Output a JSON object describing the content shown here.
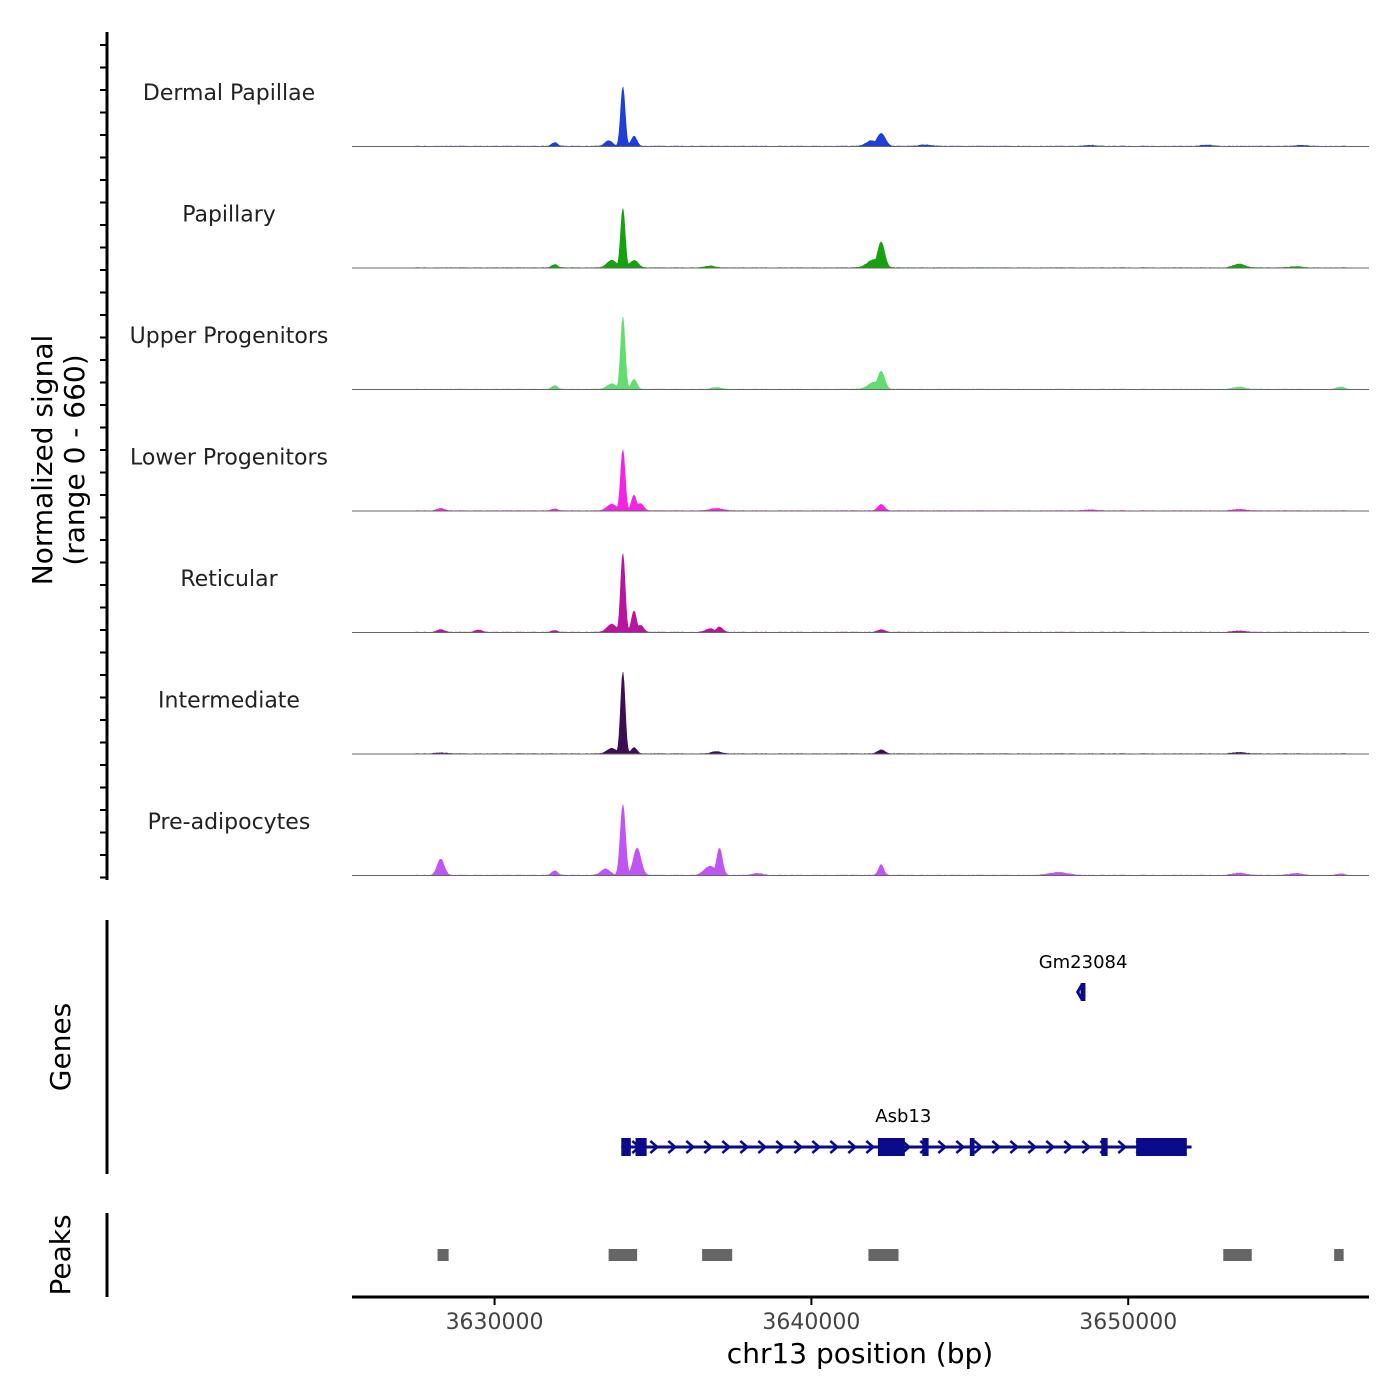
{
  "chart_data": {
    "type": "area",
    "title": "",
    "signal_axis_label": "Normalized signal",
    "signal_axis_range_label": "(range 0 - 660)",
    "signal_range": [
      0,
      660
    ],
    "genes_axis_label": "Genes",
    "peaks_axis_label": "Peaks",
    "xlabel": "chr13 position (bp)",
    "xlim": [
      3625500,
      3657600
    ],
    "x_ticks": [
      {
        "value": 3630000,
        "label": "3630000"
      },
      {
        "value": 3640000,
        "label": "3640000"
      },
      {
        "value": 3650000,
        "label": "3650000"
      }
    ],
    "tracks": [
      {
        "name": "Dermal Papillae",
        "color": "#1f3fd6",
        "peaks": [
          [
            3631900,
            40,
            90
          ],
          [
            3633600,
            60,
            120
          ],
          [
            3634050,
            640,
            70
          ],
          [
            3634400,
            110,
            90
          ],
          [
            3641900,
            60,
            170
          ],
          [
            3642200,
            140,
            130
          ],
          [
            3643600,
            15,
            200
          ],
          [
            3648800,
            10,
            200
          ],
          [
            3652500,
            12,
            200
          ],
          [
            3655500,
            10,
            200
          ]
        ]
      },
      {
        "name": "Papillary",
        "color": "#17a00f",
        "peaks": [
          [
            3631900,
            35,
            90
          ],
          [
            3633700,
            80,
            150
          ],
          [
            3634050,
            640,
            70
          ],
          [
            3634400,
            80,
            130
          ],
          [
            3636800,
            20,
            150
          ],
          [
            3642000,
            90,
            220
          ],
          [
            3642200,
            280,
            110
          ],
          [
            3653500,
            40,
            180
          ],
          [
            3655300,
            12,
            200
          ]
        ]
      },
      {
        "name": "Upper Progenitors",
        "color": "#63dd72",
        "peaks": [
          [
            3631900,
            40,
            90
          ],
          [
            3633700,
            60,
            150
          ],
          [
            3634050,
            800,
            70
          ],
          [
            3634400,
            110,
            90
          ],
          [
            3637000,
            20,
            150
          ],
          [
            3642000,
            80,
            200
          ],
          [
            3642200,
            200,
            110
          ],
          [
            3653500,
            25,
            180
          ],
          [
            3656700,
            25,
            120
          ]
        ]
      },
      {
        "name": "Lower Progenitors",
        "color": "#f422e3",
        "peaks": [
          [
            3628300,
            25,
            120
          ],
          [
            3631900,
            20,
            90
          ],
          [
            3633700,
            70,
            150
          ],
          [
            3634050,
            660,
            70
          ],
          [
            3634400,
            170,
            80
          ],
          [
            3634600,
            80,
            100
          ],
          [
            3637000,
            25,
            200
          ],
          [
            3642200,
            70,
            100
          ],
          [
            3648800,
            10,
            200
          ],
          [
            3653500,
            15,
            200
          ]
        ]
      },
      {
        "name": "Reticular",
        "color": "#b8149f",
        "peaks": [
          [
            3628300,
            30,
            120
          ],
          [
            3629500,
            25,
            120
          ],
          [
            3631900,
            20,
            90
          ],
          [
            3633700,
            90,
            150
          ],
          [
            3634050,
            880,
            70
          ],
          [
            3634400,
            240,
            80
          ],
          [
            3634600,
            80,
            100
          ],
          [
            3636800,
            40,
            140
          ],
          [
            3637100,
            60,
            100
          ],
          [
            3642200,
            30,
            110
          ],
          [
            3653500,
            15,
            200
          ]
        ]
      },
      {
        "name": "Intermediate",
        "color": "#3c0f55",
        "peaks": [
          [
            3628300,
            10,
            200
          ],
          [
            3633700,
            60,
            150
          ],
          [
            3634050,
            920,
            70
          ],
          [
            3634400,
            70,
            90
          ],
          [
            3637000,
            25,
            150
          ],
          [
            3642200,
            45,
            110
          ],
          [
            3653500,
            15,
            200
          ]
        ]
      },
      {
        "name": "Pre-adipocytes",
        "color": "#bf55f2",
        "peaks": [
          [
            3628300,
            180,
            110
          ],
          [
            3631900,
            50,
            90
          ],
          [
            3633500,
            70,
            140
          ],
          [
            3634050,
            780,
            80
          ],
          [
            3634500,
            300,
            120
          ],
          [
            3636800,
            100,
            180
          ],
          [
            3637100,
            300,
            90
          ],
          [
            3638300,
            20,
            160
          ],
          [
            3642200,
            120,
            80
          ],
          [
            3647800,
            30,
            300
          ],
          [
            3653500,
            25,
            200
          ],
          [
            3655300,
            20,
            200
          ],
          [
            3656700,
            15,
            120
          ]
        ]
      }
    ],
    "genes": [
      {
        "name": "Gm23084",
        "start": 3648500,
        "end": 3648650,
        "strand": "-",
        "row": 0,
        "exons": [
          [
            3648500,
            3648650
          ]
        ]
      },
      {
        "name": "Asb13",
        "start": 3634000,
        "end": 3652000,
        "strand": "+",
        "row": 1,
        "exons": [
          [
            3634000,
            3634300
          ],
          [
            3634450,
            3634800
          ],
          [
            3642100,
            3642950
          ],
          [
            3643500,
            3643700
          ],
          [
            3645000,
            3645150
          ],
          [
            3649150,
            3649350
          ],
          [
            3650250,
            3651850
          ]
        ]
      }
    ],
    "peak_regions": [
      {
        "start": 3628200,
        "end": 3628550
      },
      {
        "start": 3633600,
        "end": 3634500
      },
      {
        "start": 3636550,
        "end": 3637500
      },
      {
        "start": 3641800,
        "end": 3642750
      },
      {
        "start": 3653000,
        "end": 3653900
      },
      {
        "start": 3656500,
        "end": 3656800
      }
    ]
  }
}
